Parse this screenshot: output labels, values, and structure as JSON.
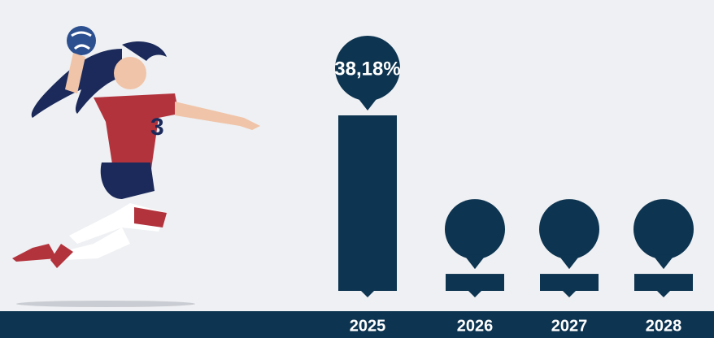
{
  "chart_data": {
    "type": "bar",
    "categories": [
      "2025",
      "2026",
      "2027",
      "2028"
    ],
    "values": [
      38.18,
      3.7,
      3.7,
      3.7
    ],
    "value_labels": [
      "38,18%",
      null,
      null,
      null
    ],
    "color": "#0d3450"
  }
}
